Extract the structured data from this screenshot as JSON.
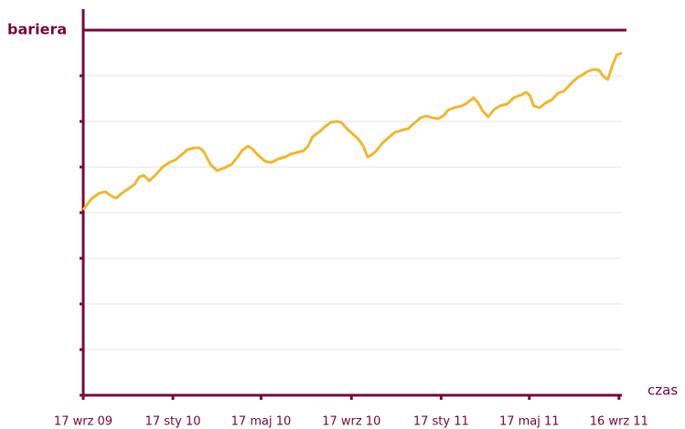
{
  "chart_data": {
    "type": "line",
    "xlabel": "czas",
    "barrier": {
      "value": 8,
      "label": "bariera"
    },
    "x": [
      0,
      11,
      21,
      30,
      39,
      45,
      52,
      61,
      70,
      76,
      82,
      90,
      98,
      108,
      117,
      126,
      133,
      142,
      151,
      158,
      164,
      173,
      182,
      192,
      202,
      210,
      216,
      224,
      230,
      238,
      248,
      256,
      266,
      275,
      282,
      291,
      300,
      306,
      312,
      322,
      330,
      337,
      345,
      351,
      360,
      367,
      374,
      381,
      387,
      392,
      399,
      407,
      415,
      424,
      432,
      442,
      449,
      459,
      467,
      474,
      483,
      490,
      496,
      505,
      515,
      522,
      531,
      537,
      544,
      551,
      559,
      567,
      577,
      586,
      596,
      603,
      608,
      613,
      621,
      629,
      638,
      646,
      654,
      663,
      671,
      679,
      687,
      695,
      702,
      708,
      714,
      720,
      726,
      733
    ],
    "series": [
      {
        "name": null,
        "color": "#f0b830",
        "values": [
          4.06,
          4.3,
          4.42,
          4.46,
          4.36,
          4.32,
          4.42,
          4.52,
          4.62,
          4.78,
          4.82,
          4.7,
          4.82,
          5.0,
          5.1,
          5.16,
          5.26,
          5.38,
          5.42,
          5.42,
          5.34,
          5.06,
          4.92,
          4.98,
          5.06,
          5.22,
          5.36,
          5.46,
          5.4,
          5.26,
          5.12,
          5.1,
          5.18,
          5.22,
          5.28,
          5.32,
          5.36,
          5.46,
          5.66,
          5.78,
          5.9,
          5.98,
          6.0,
          5.98,
          5.82,
          5.72,
          5.62,
          5.46,
          5.22,
          5.26,
          5.36,
          5.52,
          5.64,
          5.76,
          5.8,
          5.84,
          5.94,
          6.08,
          6.12,
          6.08,
          6.06,
          6.12,
          6.24,
          6.3,
          6.34,
          6.4,
          6.52,
          6.42,
          6.22,
          6.1,
          6.26,
          6.34,
          6.38,
          6.52,
          6.58,
          6.64,
          6.56,
          6.34,
          6.3,
          6.4,
          6.48,
          6.62,
          6.66,
          6.82,
          6.94,
          7.02,
          7.1,
          7.14,
          7.12,
          6.98,
          6.92,
          7.22,
          7.46,
          7.5
        ]
      }
    ],
    "xlim": [
      0,
      733
    ],
    "xticks": [
      {
        "value": 0,
        "label": "17 wrz 09"
      },
      {
        "value": 122,
        "label": "17 sty 10"
      },
      {
        "value": 242,
        "label": "17 maj 10"
      },
      {
        "value": 365,
        "label": "17 wrz 10"
      },
      {
        "value": 487,
        "label": "17 sty 11"
      },
      {
        "value": 607,
        "label": "17 maj 11"
      },
      {
        "value": 729,
        "label": "16 wrz 11"
      }
    ],
    "ylim": [
      0,
      8
    ],
    "yticks": [
      0,
      1,
      2,
      3,
      4,
      5,
      6,
      7
    ],
    "ytick_labels": false,
    "grid": true,
    "axis_color": "#7a0a3c"
  }
}
